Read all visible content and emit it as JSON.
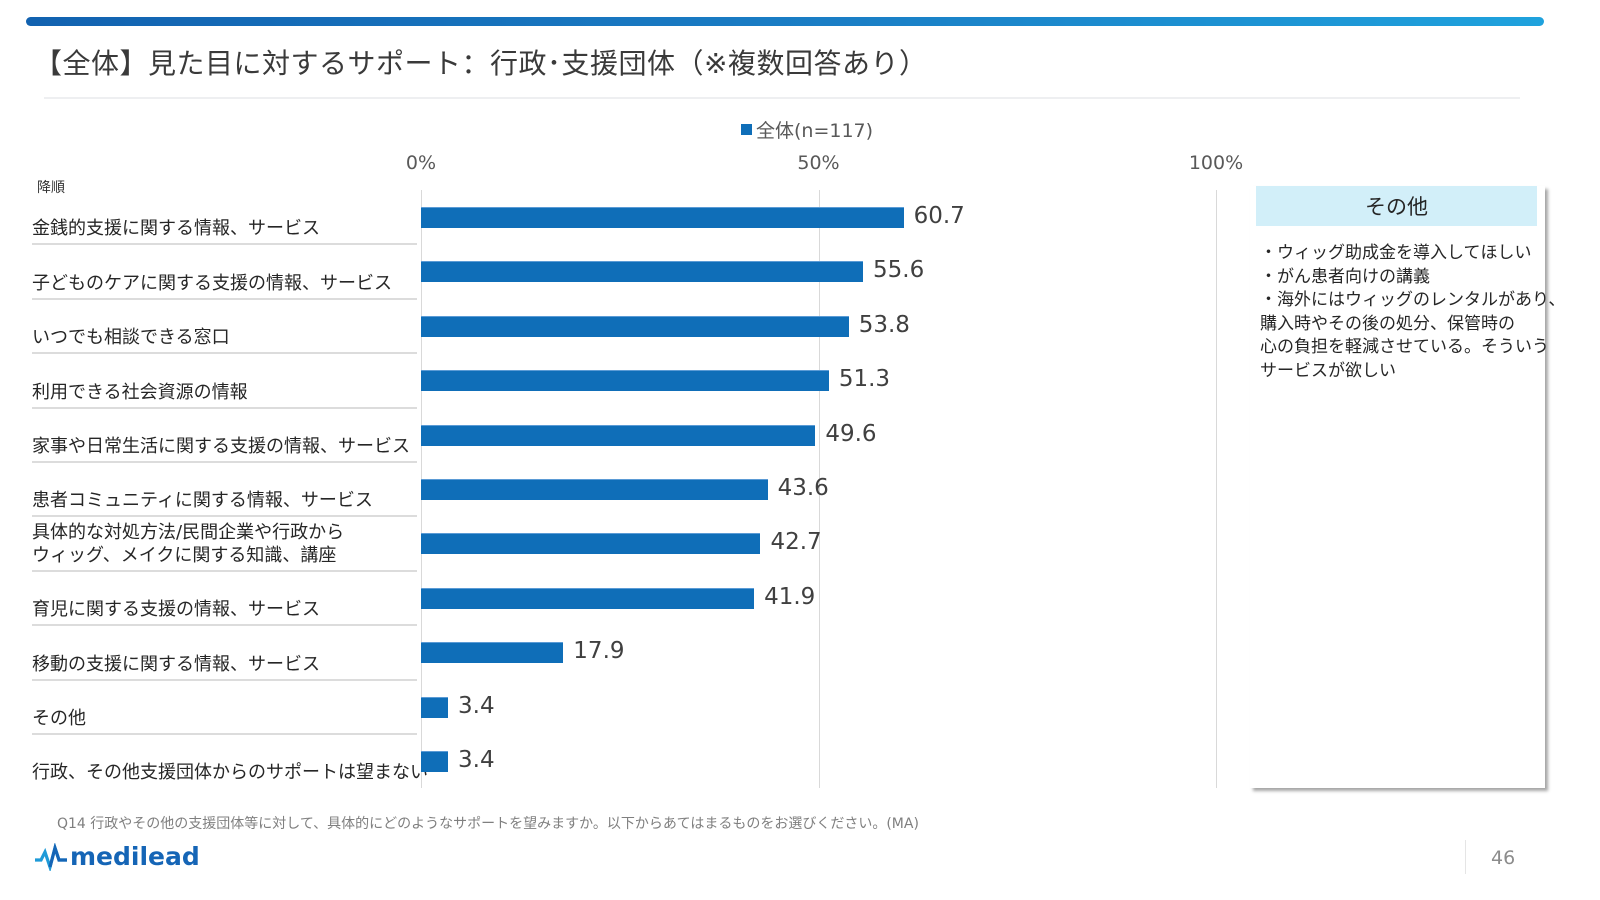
{
  "header": {
    "title": "【全体】見た目に対するサポート：行政･支援団体（※複数回答あり）"
  },
  "sort_label": "降順",
  "chart_data": {
    "type": "bar",
    "orientation": "horizontal",
    "title": "【全体】見た目に対するサポート：行政･支援団体（※複数回答あり）",
    "legend": [
      {
        "name": "全体(n=117)",
        "color": "#0f6eb8"
      }
    ],
    "legend_position": "top",
    "xlabel": "",
    "ylabel": "",
    "xlim": [
      0,
      100
    ],
    "x_ticks": [
      "0%",
      "50%",
      "100%"
    ],
    "x_tick_values": [
      0,
      50,
      100
    ],
    "grid": true,
    "sort": "descending",
    "categories": [
      "金銭的支援に関する情報、サービス",
      "子どものケアに関する支援の情報、サービス",
      "いつでも相談できる窓口",
      "利用できる社会資源の情報",
      "家事や日常生活に関する支援の情報、サービス",
      "患者コミュニティに関する情報、サービス",
      "具体的な対処方法/民間企業や行政から\nウィッグ、メイクに関する知識、講座",
      "育児に関する支援の情報、サービス",
      "移動の支援に関する情報、サービス",
      "その他",
      "行政、その他支援団体からのサポートは望まない"
    ],
    "series": [
      {
        "name": "全体(n=117)",
        "color": "#0f6eb8",
        "values": [
          60.7,
          55.6,
          53.8,
          51.3,
          49.6,
          43.6,
          42.7,
          41.9,
          17.9,
          3.4,
          3.4
        ],
        "labels": [
          "60.7",
          "55.6",
          "53.8",
          "51.3",
          "49.6",
          "43.6",
          "42.7",
          "41.9",
          "17.9",
          "3.4",
          "3.4"
        ]
      }
    ]
  },
  "other_panel": {
    "title": "その他",
    "lines": [
      "・ウィッグ助成金を導入してほしい",
      "・がん患者向けの講義",
      "・海外にはウィッグのレンタルがあり、",
      "購入時やその後の処分、保管時の",
      "心の負担を軽減させている。そういう",
      "サービスが欲しい"
    ],
    "header_color": "#d2eff9"
  },
  "footer": {
    "question": "Q14 行政やその他の支援団体等に対して、具体的にどのようなサポートを望みますか。以下からあてはまるものをお選びください。(MA)",
    "logo_text": "medilead",
    "logo_icon": "pulse-wave-icon",
    "page_number": "46"
  },
  "colors": {
    "accent": "#0f6eb8",
    "top_bar_start": "#1262b0",
    "top_bar_end": "#1fa2dd"
  }
}
